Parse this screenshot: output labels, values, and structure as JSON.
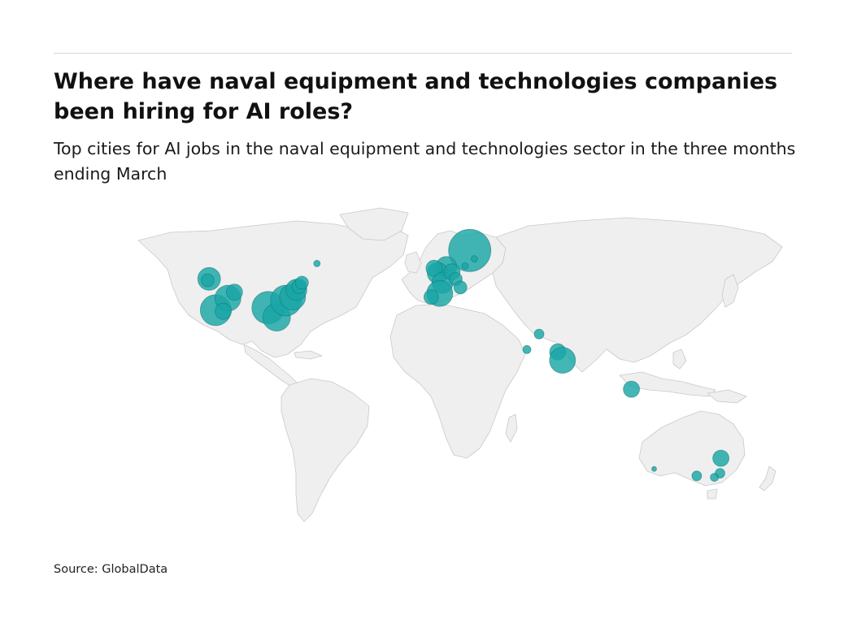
{
  "title": "Where have naval equipment and technologies companies been hiring for AI roles?",
  "subtitle": "Top cities for AI jobs in the naval equipment and technologies sector in the three months ending March",
  "source": "Source: GlobalData",
  "colors": {
    "bubble": "#1aa6a6",
    "land": "#efefef",
    "border": "#c9c9c9",
    "rule": "#d6d6d6"
  },
  "bubbles": [
    {
      "lon": -121.5,
      "lat": 47.6,
      "size": 14
    },
    {
      "lon": -122.3,
      "lat": 47.0,
      "size": 8
    },
    {
      "lon": -118.0,
      "lat": 34.5,
      "size": 19
    },
    {
      "lon": -111.5,
      "lat": 39.5,
      "size": 16
    },
    {
      "lon": -108.0,
      "lat": 42.0,
      "size": 10
    },
    {
      "lon": -114.0,
      "lat": 34.0,
      "size": 10
    },
    {
      "lon": -90.0,
      "lat": 35.5,
      "size": 20
    },
    {
      "lon": -85.5,
      "lat": 31.5,
      "size": 17
    },
    {
      "lon": -80.5,
      "lat": 38.5,
      "size": 19
    },
    {
      "lon": -77.0,
      "lat": 40.0,
      "size": 16
    },
    {
      "lon": -75.0,
      "lat": 43.0,
      "size": 13
    },
    {
      "lon": -73.5,
      "lat": 44.5,
      "size": 9
    },
    {
      "lon": -72.0,
      "lat": 46.0,
      "size": 8
    },
    {
      "lon": -64.0,
      "lat": 54.0,
      "size": 4
    },
    {
      "lon": 17.5,
      "lat": 59.5,
      "size": 26
    },
    {
      "lon": 5.0,
      "lat": 52.5,
      "size": 13
    },
    {
      "lon": 0.5,
      "lat": 50.0,
      "size": 13
    },
    {
      "lon": -1.5,
      "lat": 52.0,
      "size": 10
    },
    {
      "lon": 3.0,
      "lat": 46.0,
      "size": 13
    },
    {
      "lon": 8.0,
      "lat": 50.5,
      "size": 10
    },
    {
      "lon": 10.0,
      "lat": 47.5,
      "size": 8
    },
    {
      "lon": 1.5,
      "lat": 41.5,
      "size": 16
    },
    {
      "lon": -3.0,
      "lat": 40.0,
      "size": 9
    },
    {
      "lon": 12.5,
      "lat": 44.0,
      "size": 8
    },
    {
      "lon": 15.0,
      "lat": 53.0,
      "size": 4
    },
    {
      "lon": 20.0,
      "lat": 56.0,
      "size": 4
    },
    {
      "lon": 54.5,
      "lat": 24.5,
      "size": 6
    },
    {
      "lon": 48.0,
      "lat": 18.0,
      "size": 5
    },
    {
      "lon": 64.5,
      "lat": 17.0,
      "size": 10
    },
    {
      "lon": 67.0,
      "lat": 13.5,
      "size": 16
    },
    {
      "lon": 103.8,
      "lat": 1.4,
      "size": 10
    },
    {
      "lon": 151.5,
      "lat": -27.5,
      "size": 10
    },
    {
      "lon": 151.0,
      "lat": -33.8,
      "size": 6
    },
    {
      "lon": 148.0,
      "lat": -35.5,
      "size": 5
    },
    {
      "lon": 138.6,
      "lat": -34.9,
      "size": 6
    },
    {
      "lon": 115.9,
      "lat": -32.0,
      "size": 3
    }
  ]
}
